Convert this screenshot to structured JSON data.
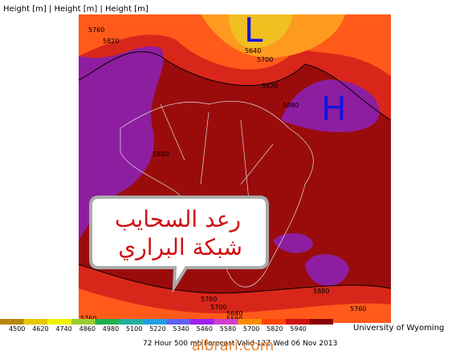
{
  "header": {
    "title": "Height [m] | Height [m] | Height [m]"
  },
  "map": {
    "low_marker": "L",
    "high_marker": "H",
    "contour_labels": [
      "5760",
      "5820",
      "5640",
      "5700",
      "5820",
      "5880",
      "5880",
      "5880",
      "5760",
      "5700",
      "5640",
      "5580",
      "5760",
      "5760"
    ]
  },
  "callout": {
    "lines": [
      "رعد السحايب",
      "شبكة البراري"
    ]
  },
  "colorbar": {
    "ticks": [
      "4500",
      "4620",
      "4740",
      "4860",
      "4980",
      "5100",
      "5220",
      "5340",
      "5460",
      "5580",
      "5700",
      "5820",
      "5940"
    ],
    "colors": [
      "#b8860b",
      "#e6c800",
      "#f0f000",
      "#9acd32",
      "#20b050",
      "#20b0a0",
      "#20a0e0",
      "#6060f0",
      "#a020f0",
      "#d040d0",
      "#ff8c00",
      "#ff4500",
      "#d01010",
      "#8b0000"
    ]
  },
  "credit": "University of Wyoming",
  "footer": "72 Hour 500 mb Forecast Valid 12Z Wed 06 Nov 2013",
  "watermark": "albrari.com"
}
